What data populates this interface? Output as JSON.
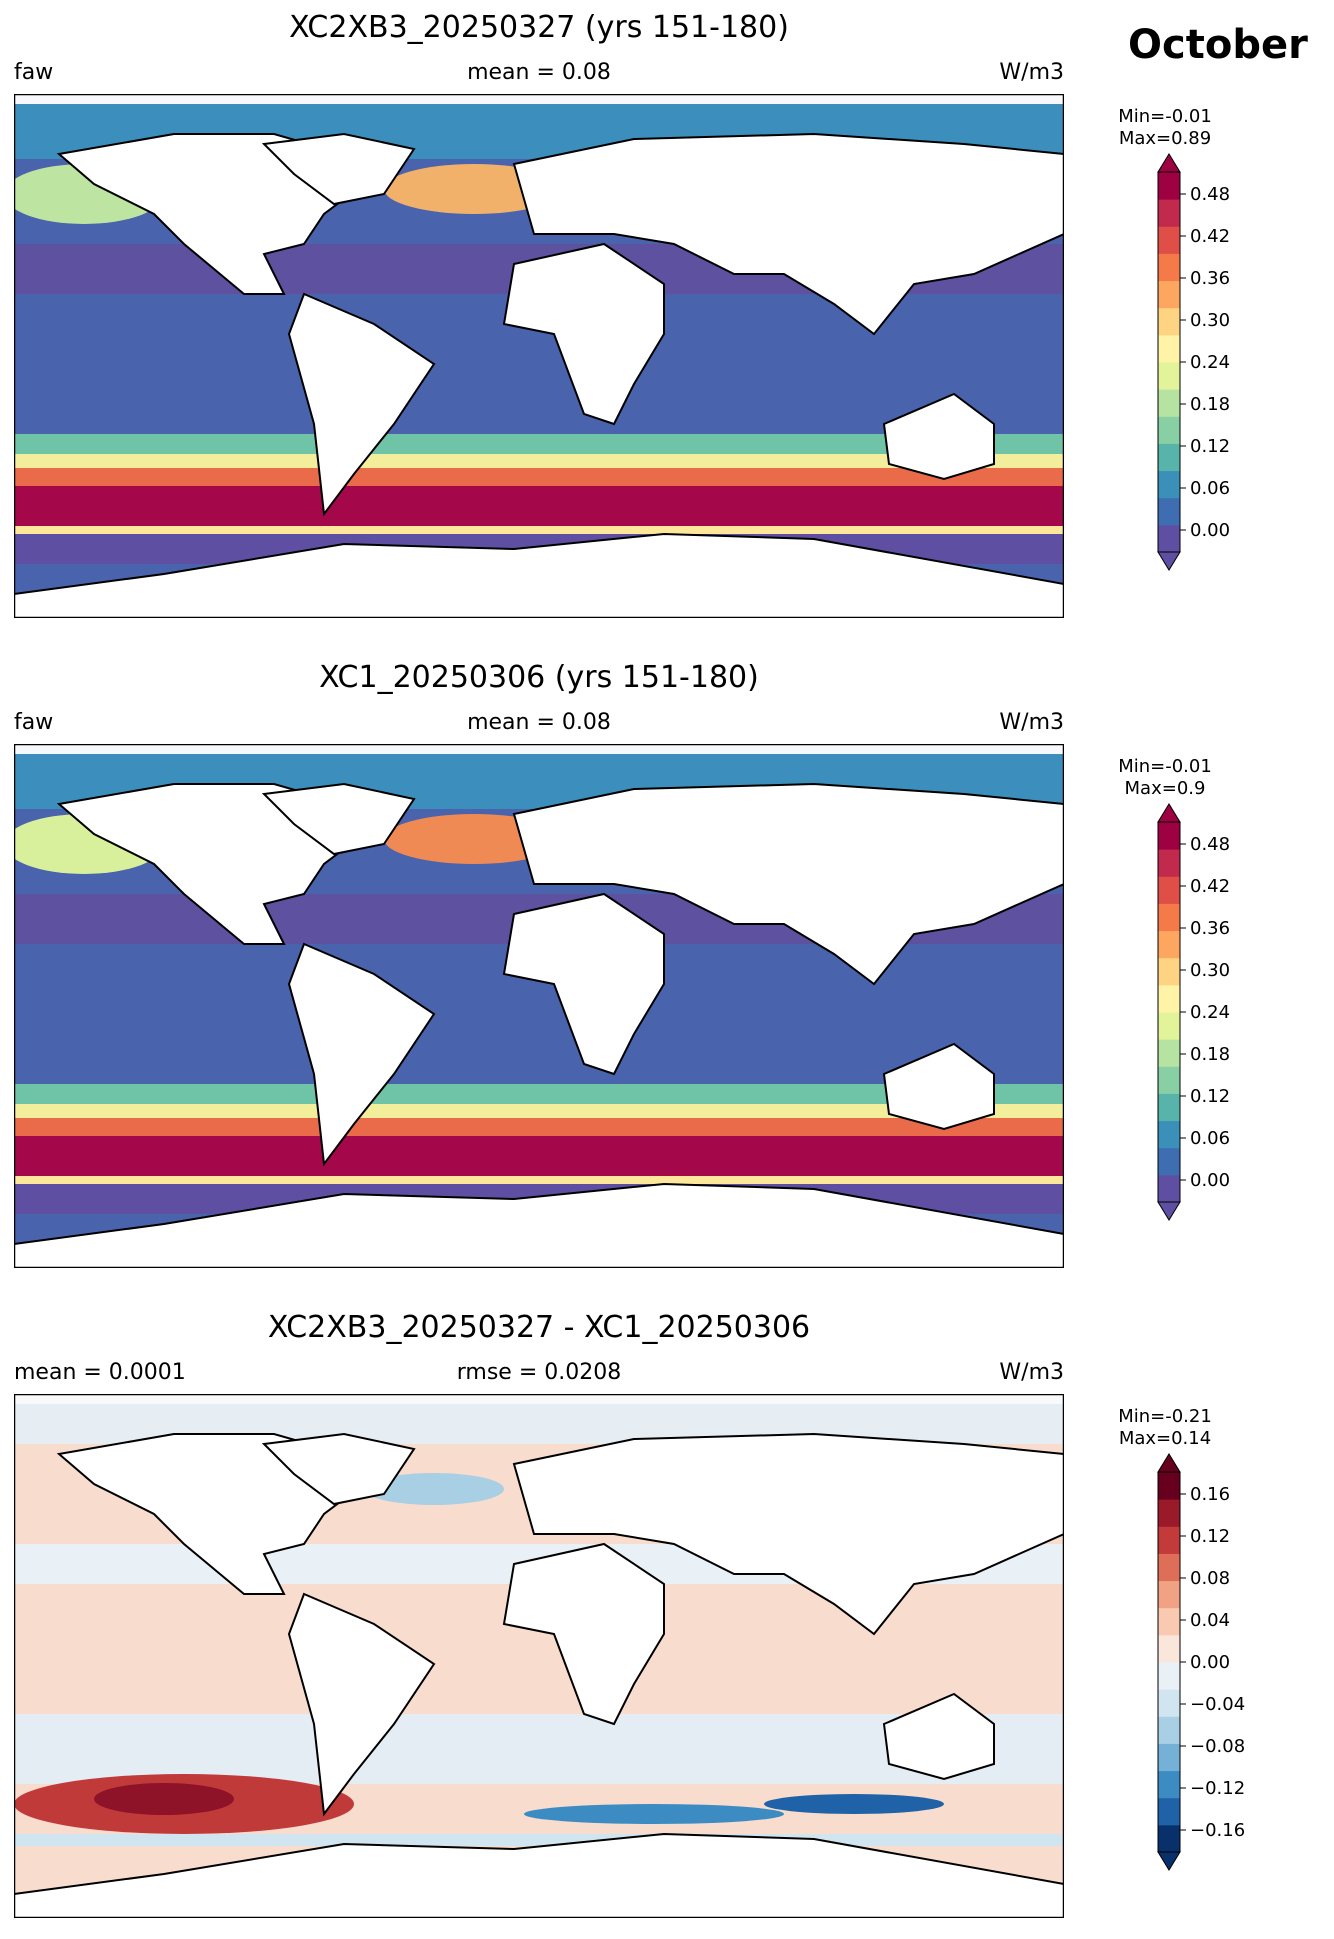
{
  "month": "October",
  "panels": [
    {
      "title": "XC2XB3_20250327 (yrs 151-180)",
      "left_label": "faw",
      "center_label": "mean = 0.08",
      "right_label": "W/m3",
      "min_text": "Min=-0.01",
      "max_text": "Max=0.89",
      "colorbar": {
        "colormap": "Spectral_r",
        "ticks": [
          "0.00",
          "0.06",
          "0.12",
          "0.18",
          "0.24",
          "0.30",
          "0.36",
          "0.42",
          "0.48"
        ],
        "colors": [
          "#5e4fa2",
          "#3e6eb1",
          "#3a90b9",
          "#58b4aa",
          "#88cfa4",
          "#b6e3a2",
          "#e2f39a",
          "#fff3a8",
          "#fed382",
          "#fca65f",
          "#f57a4a",
          "#e04f47",
          "#c22a4d",
          "#9e0142"
        ],
        "extend": "both"
      }
    },
    {
      "title": "XC1_20250306 (yrs 151-180)",
      "left_label": "faw",
      "center_label": "mean = 0.08",
      "right_label": "W/m3",
      "min_text": "Min=-0.01",
      "max_text": "Max=0.9",
      "colorbar": {
        "colormap": "Spectral_r",
        "ticks": [
          "0.00",
          "0.06",
          "0.12",
          "0.18",
          "0.24",
          "0.30",
          "0.36",
          "0.42",
          "0.48"
        ],
        "colors": [
          "#5e4fa2",
          "#3e6eb1",
          "#3a90b9",
          "#58b4aa",
          "#88cfa4",
          "#b6e3a2",
          "#e2f39a",
          "#fff3a8",
          "#fed382",
          "#fca65f",
          "#f57a4a",
          "#e04f47",
          "#c22a4d",
          "#9e0142"
        ],
        "extend": "both"
      }
    },
    {
      "title": "XC2XB3_20250327 - XC1_20250306",
      "left_label": "mean = 0.0001",
      "center_label": "rmse = 0.0208",
      "right_label": "W/m3",
      "min_text": "Min=-0.21",
      "max_text": "Max=0.14",
      "colorbar": {
        "colormap": "RdBu_r",
        "ticks": [
          "−0.16",
          "−0.12",
          "−0.08",
          "−0.04",
          "0.00",
          "0.04",
          "0.08",
          "0.12",
          "0.16"
        ],
        "colors": [
          "#08306b",
          "#1f62a8",
          "#3d8bc3",
          "#75b1d6",
          "#a9cfe5",
          "#d1e5f0",
          "#eaf1f6",
          "#fbe6dc",
          "#f9cab1",
          "#f1a284",
          "#de6e57",
          "#c23a3a",
          "#9a1a2a",
          "#67001f"
        ],
        "extend": "both"
      }
    }
  ],
  "chart_data": [
    {
      "type": "heatmap",
      "title": "XC2XB3_20250327 (yrs 151-180)",
      "variable": "faw",
      "units": "W/m3",
      "mean": 0.08,
      "min": -0.01,
      "max": 0.89,
      "clim": [
        0.0,
        0.48
      ],
      "colorbar_ticks": [
        0.0,
        0.06,
        0.12,
        0.18,
        0.24,
        0.3,
        0.36,
        0.42,
        0.48
      ],
      "colormap": "Spectral_r",
      "projection": "global lat-lon map"
    },
    {
      "type": "heatmap",
      "title": "XC1_20250306 (yrs 151-180)",
      "variable": "faw",
      "units": "W/m3",
      "mean": 0.08,
      "min": -0.01,
      "max": 0.9,
      "clim": [
        0.0,
        0.48
      ],
      "colorbar_ticks": [
        0.0,
        0.06,
        0.12,
        0.18,
        0.24,
        0.3,
        0.36,
        0.42,
        0.48
      ],
      "colormap": "Spectral_r",
      "projection": "global lat-lon map"
    },
    {
      "type": "heatmap",
      "title": "XC2XB3_20250327 - XC1_20250306",
      "units": "W/m3",
      "mean": 0.0001,
      "rmse": 0.0208,
      "min": -0.21,
      "max": 0.14,
      "clim": [
        -0.16,
        0.16
      ],
      "colorbar_ticks": [
        -0.16,
        -0.12,
        -0.08,
        -0.04,
        0.0,
        0.04,
        0.08,
        0.12,
        0.16
      ],
      "colormap": "RdBu_r",
      "projection": "global lat-lon map"
    }
  ]
}
